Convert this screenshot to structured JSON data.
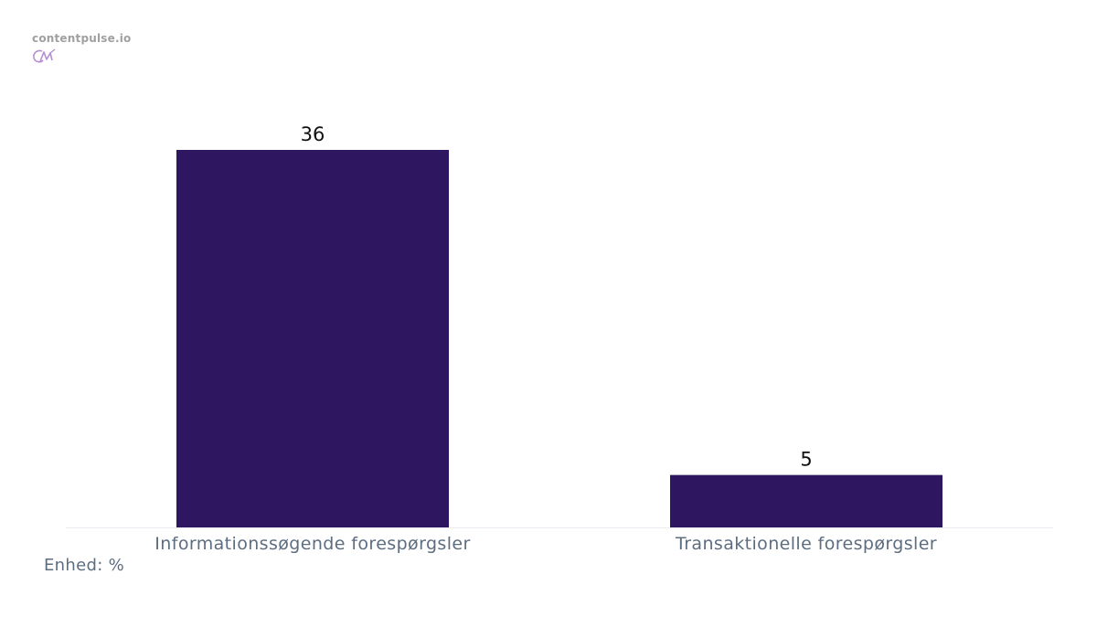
{
  "brand": {
    "name": "contentpulse.io",
    "logo_icon": "cp-logo-icon",
    "logo_color": "#b58ed3"
  },
  "unit_label": "Enhed: %",
  "colors": {
    "bar": "#2e1760",
    "axis_text": "#5d6d80",
    "value_text": "#111111",
    "baseline": "#eaeef3"
  },
  "chart_data": {
    "type": "bar",
    "categories": [
      "Informationssøgende forespørgsler",
      "Transaktionelle forespørgsler"
    ],
    "values": [
      36,
      5
    ],
    "title": "",
    "xlabel": "",
    "ylabel": "",
    "ylim": [
      0,
      36
    ],
    "grid": false,
    "legend": "none"
  }
}
